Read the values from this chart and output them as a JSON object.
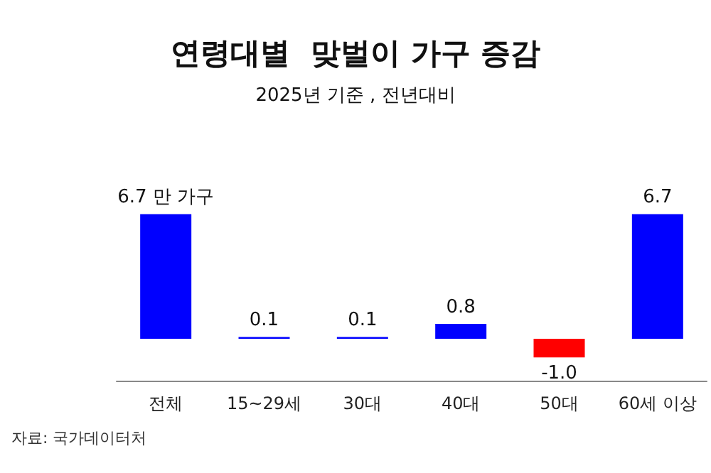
{
  "chart_data": {
    "type": "bar",
    "title": "연령대별  맞벌이 가구 증감",
    "subtitle": "2025년 기준 , 전년대비",
    "categories": [
      "전체",
      "15~29세",
      "30대",
      "40대",
      "50대",
      "60세 이상"
    ],
    "values": [
      6.7,
      0.1,
      0.1,
      0.8,
      -1.0,
      6.7
    ],
    "colors": [
      "#0000ff",
      "#0000ff",
      "#0000ff",
      "#0000ff",
      "#ff0000",
      "#0000ff"
    ],
    "value_labels": [
      "6.7 만 가구",
      "0.1",
      "0.1",
      "0.8",
      "-1.0",
      "6.7"
    ],
    "tick_labels": "x",
    "grid": false,
    "annotations": [
      "자료: 국가데이터처"
    ]
  }
}
